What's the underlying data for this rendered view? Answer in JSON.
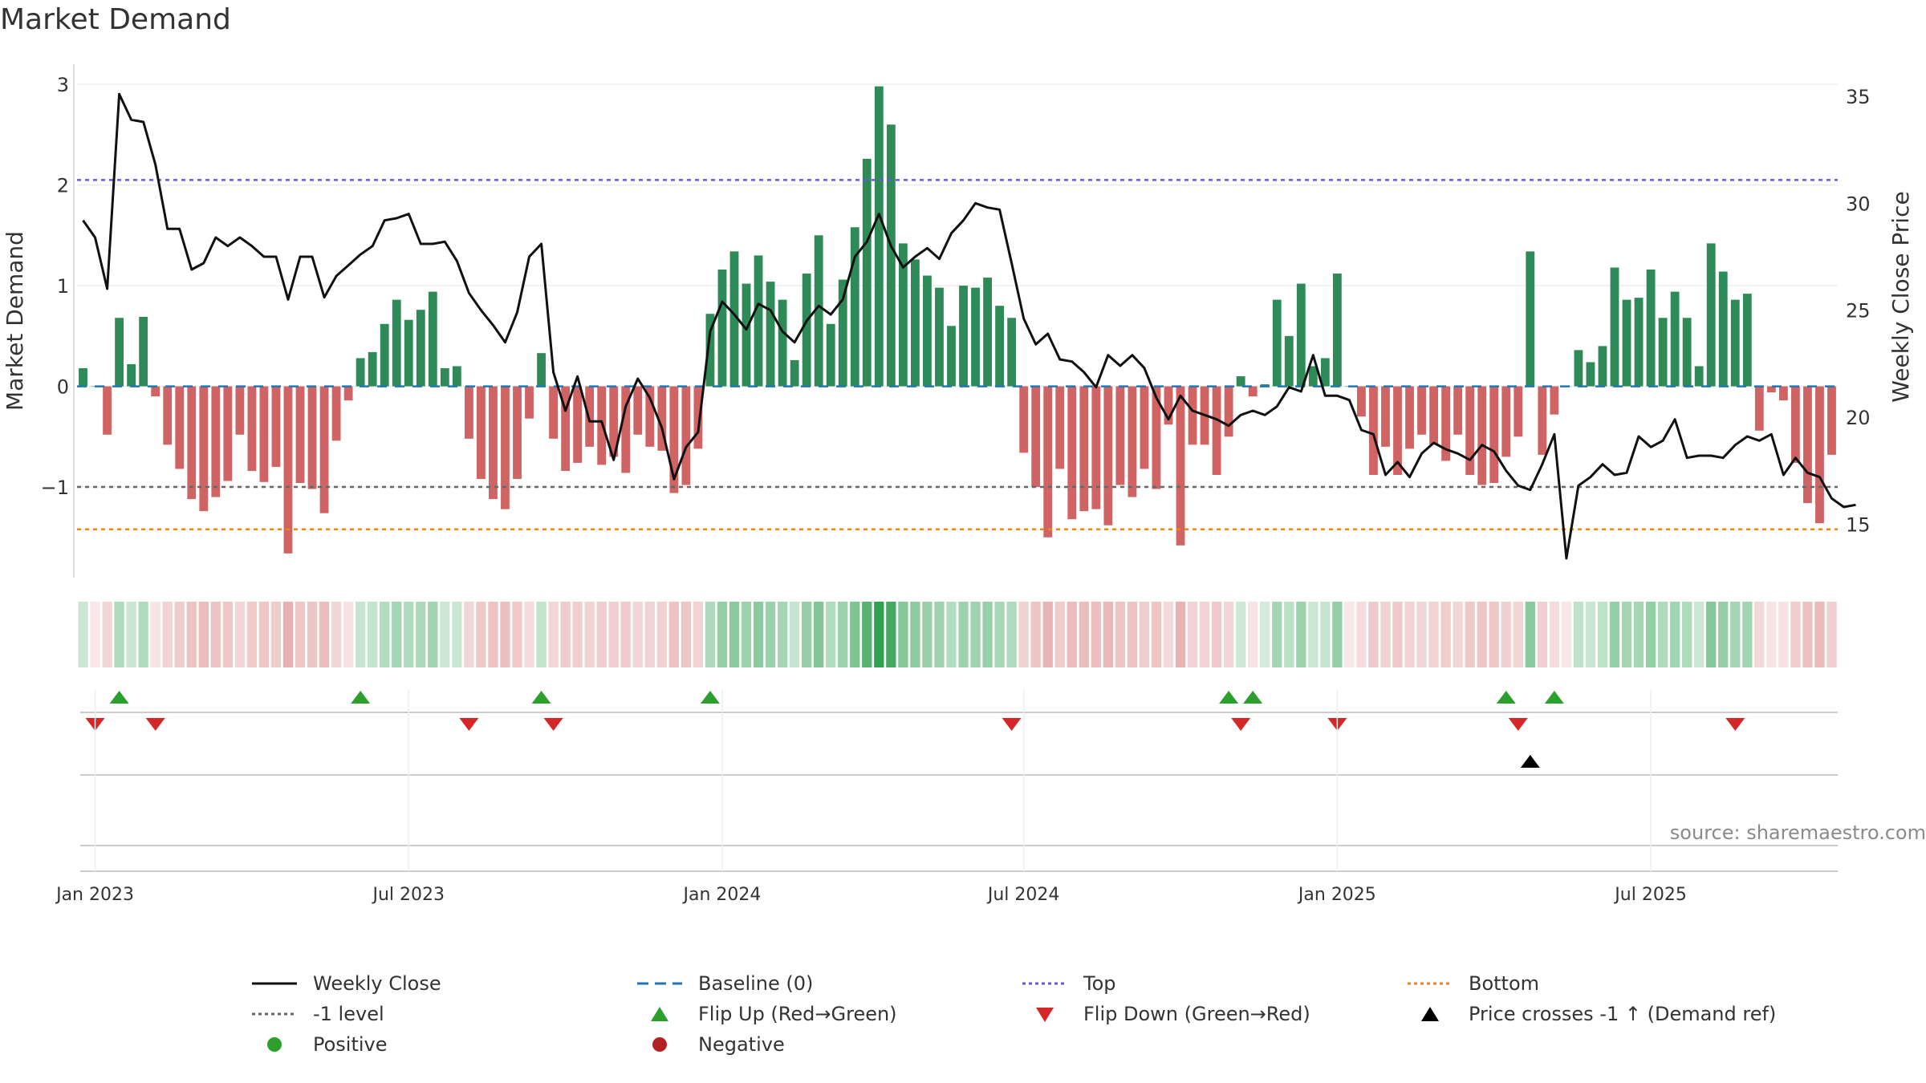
{
  "title": "Market Demand",
  "source": "source: sharemaestro.com",
  "colors": {
    "positive": "#2e8b57",
    "negative": "#cd5c5c",
    "line": "#111111",
    "baseline": "#1f77b4",
    "top": "#6a5acd",
    "bottom": "#e08a1e",
    "minus1": "#666666",
    "flip_up": "#2ca02c",
    "flip_down": "#d62728",
    "cross": "#000000"
  },
  "chart_data": {
    "type": "bar+line",
    "title": "Market Demand",
    "ylabel": "Market Demand",
    "y2label": "Weekly Close Price",
    "ylim": [
      -1.9,
      3.2
    ],
    "y2lim": [
      12.5,
      36.5
    ],
    "yticks": [
      "3",
      "2",
      "1",
      "0",
      "−1"
    ],
    "ytick_values": [
      3,
      2,
      1,
      0,
      -1
    ],
    "y2ticks": [
      "35",
      "30",
      "25",
      "20",
      "15"
    ],
    "y2tick_values": [
      35,
      30,
      25,
      20,
      15
    ],
    "xticks": [
      "Jan 2023",
      "Jul 2023",
      "Jan 2024",
      "Jul 2024",
      "Jan 2025",
      "Jul 2025"
    ],
    "xtick_weeks": [
      1,
      27,
      53,
      78,
      104,
      130
    ],
    "reference_lines": {
      "baseline": 0,
      "top": 2.05,
      "bottom": -1.42,
      "minus1": -1.0
    },
    "demand": [
      0.18,
      0.0,
      -0.48,
      0.68,
      0.22,
      0.69,
      -0.1,
      -0.58,
      -0.82,
      -1.12,
      -1.24,
      -1.1,
      -0.94,
      -0.48,
      -0.84,
      -0.95,
      -0.8,
      -1.66,
      -0.96,
      -1.02,
      -1.26,
      -0.54,
      -0.14,
      0.28,
      0.34,
      0.62,
      0.86,
      0.66,
      0.76,
      0.94,
      0.18,
      0.2,
      -0.52,
      -0.92,
      -1.12,
      -1.22,
      -0.92,
      -0.32,
      0.33,
      -0.52,
      -0.84,
      -0.76,
      -0.6,
      -0.78,
      -0.7,
      -0.86,
      -0.48,
      -0.6,
      -0.64,
      -1.06,
      -0.98,
      -0.62,
      0.72,
      1.16,
      1.34,
      1.02,
      1.3,
      1.04,
      0.86,
      0.26,
      1.12,
      1.5,
      0.62,
      1.06,
      1.58,
      2.26,
      2.98,
      2.6,
      1.42,
      1.26,
      1.1,
      0.98,
      0.6,
      1.0,
      0.98,
      1.08,
      0.8,
      0.68,
      -0.66,
      -1.0,
      -1.5,
      -0.82,
      -1.32,
      -1.24,
      -1.22,
      -1.38,
      -0.98,
      -1.1,
      -0.82,
      -1.02,
      -0.38,
      -1.58,
      -0.58,
      -0.58,
      -0.88,
      -0.5,
      0.1,
      -0.1,
      0.02,
      0.86,
      0.5,
      1.02,
      0.2,
      0.28,
      1.12,
      0.0,
      -0.3,
      -0.88,
      -0.6,
      -0.88,
      -0.62,
      -0.48,
      -0.58,
      -0.74,
      -0.48,
      -0.88,
      -0.98,
      -0.96,
      -0.7,
      -0.5,
      1.34,
      -0.68,
      -0.28,
      0.0,
      0.36,
      0.24,
      0.4,
      1.18,
      0.86,
      0.88,
      1.16,
      0.68,
      0.94,
      0.68,
      0.2,
      1.42,
      1.14,
      0.86,
      0.92,
      -0.44,
      -0.06,
      -0.14,
      -0.76,
      -1.16,
      -1.36,
      -0.68
    ],
    "weekly_close": [
      29.2,
      28.4,
      26.0,
      35.1,
      33.9,
      33.8,
      31.8,
      28.8,
      28.8,
      26.9,
      27.2,
      28.4,
      28.0,
      28.4,
      28.0,
      27.5,
      27.5,
      25.5,
      27.5,
      27.5,
      25.6,
      26.6,
      27.1,
      27.6,
      28.0,
      29.2,
      29.3,
      29.5,
      28.1,
      28.1,
      28.2,
      27.3,
      25.8,
      25.0,
      24.3,
      23.5,
      24.9,
      27.5,
      28.1,
      22.1,
      20.3,
      21.9,
      19.8,
      19.8,
      18.0,
      20.5,
      21.8,
      20.9,
      19.5,
      17.1,
      18.6,
      19.3,
      24.0,
      25.4,
      24.8,
      24.1,
      25.3,
      25.0,
      24.0,
      23.5,
      24.5,
      25.2,
      24.8,
      25.5,
      27.5,
      28.2,
      29.5,
      28.0,
      27.0,
      27.5,
      27.9,
      27.4,
      28.6,
      29.2,
      30.0,
      29.8,
      29.7,
      27.2,
      24.6,
      23.4,
      23.9,
      22.7,
      22.6,
      22.1,
      21.4,
      22.9,
      22.4,
      22.9,
      22.3,
      20.9,
      19.9,
      21.0,
      20.3,
      20.1,
      19.9,
      19.6,
      20.1,
      20.3,
      20.1,
      20.5,
      21.4,
      21.2,
      22.9,
      21.0,
      21.0,
      20.8,
      19.4,
      19.2,
      17.3,
      17.9,
      17.2,
      18.3,
      18.8,
      18.5,
      18.3,
      18.0,
      18.7,
      18.4,
      17.5,
      16.8,
      16.6,
      17.8,
      19.2,
      13.4,
      16.8,
      17.2,
      17.8,
      17.3,
      17.4,
      19.1,
      18.6,
      18.9,
      19.9,
      18.1,
      18.2,
      18.2,
      18.1,
      18.7,
      19.1,
      18.9,
      19.2,
      17.3,
      18.1,
      17.4,
      17.2,
      16.2,
      15.8,
      15.9
    ],
    "flip_up_weeks": [
      3,
      23,
      38,
      52,
      95,
      97,
      118,
      122
    ],
    "flip_down_weeks": [
      1,
      6,
      32,
      39,
      77,
      96,
      104,
      119,
      137
    ],
    "price_cross_weeks": [
      120
    ]
  },
  "legend": [
    {
      "label": "Weekly Close",
      "icon": "solid-line",
      "color": "#111111"
    },
    {
      "label": "Baseline (0)",
      "icon": "dashed-line",
      "color": "#1f77b4"
    },
    {
      "label": "Top",
      "icon": "dotted-line",
      "color": "#6a5acd"
    },
    {
      "label": "Bottom",
      "icon": "dotted-line",
      "color": "#e08a1e"
    },
    {
      "label": "-1 level",
      "icon": "dotted-line",
      "color": "#666666"
    },
    {
      "label": "Flip Up (Red→Green)",
      "icon": "triangle-up",
      "color": "#2ca02c"
    },
    {
      "label": "Flip Down (Green→Red)",
      "icon": "triangle-down",
      "color": "#d62728"
    },
    {
      "label": "Price crosses -1 ↑ (Demand ref)",
      "icon": "triangle-up",
      "color": "#000000"
    },
    {
      "label": "Positive",
      "icon": "dot",
      "color": "#2ca02c"
    },
    {
      "label": "Negative",
      "icon": "dot",
      "color": "#b22222"
    }
  ]
}
